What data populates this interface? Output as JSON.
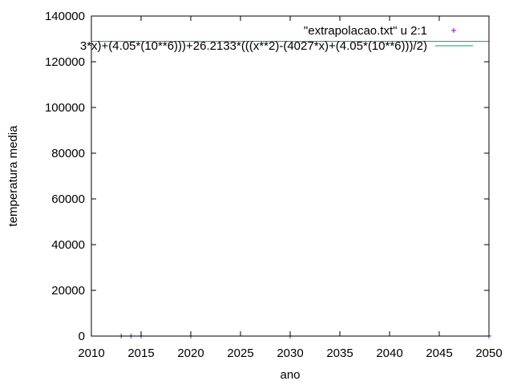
{
  "chart_data": {
    "type": "scatter",
    "xlabel": "ano",
    "ylabel": "temperatura media",
    "xlim": [
      2010,
      2050
    ],
    "ylim": [
      0,
      140000
    ],
    "xticks": [
      2010,
      2015,
      2020,
      2025,
      2030,
      2035,
      2040,
      2045,
      2050
    ],
    "yticks": [
      0,
      20000,
      40000,
      60000,
      80000,
      100000,
      120000,
      140000
    ],
    "grid": false,
    "legend_position": "top-right",
    "series": [
      {
        "name": "\"extrapolacao.txt\" u 2:1",
        "kind": "points",
        "marker": "plus",
        "color": "#9400d3",
        "x": [
          2013,
          2014,
          2015,
          2020,
          2030,
          2050
        ],
        "y": [
          25,
          26,
          26,
          27,
          28,
          30
        ]
      },
      {
        "name": "3*x)+(4.05*(10**6)))+26.2133*(((x**2)-(4027*x)+(4.05*(10**6)))/2)",
        "kind": "line",
        "color": "#009e73",
        "x": [
          2010,
          2050
        ],
        "y": [
          128900,
          128900
        ]
      }
    ]
  }
}
